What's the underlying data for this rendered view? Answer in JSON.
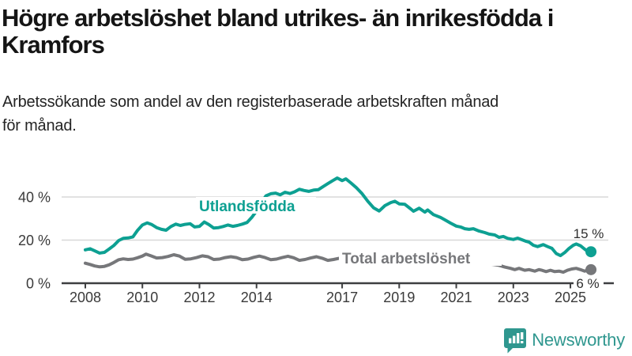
{
  "header": {
    "title_lines": [
      "Högre arbetslöshet bland utrikes- än inrikesfödda i",
      "Kramfors"
    ],
    "subtitle_lines": [
      "Arbetssökande som andel av den registerbaserade arbetskraften månad",
      "för månad."
    ]
  },
  "chart_data": {
    "type": "line",
    "title": "Högre arbetslöshet bland utrikes- än inrikesfödda i Kramfors",
    "subtitle": "Arbetssökande som andel av den registerbaserade arbetskraften månad för månad.",
    "xlabel": "",
    "ylabel": "",
    "legend_position": "inline-labels",
    "grid": true,
    "x_axis": {
      "range": [
        2007.2,
        2026.5
      ],
      "ticks": [
        {
          "value": 2008,
          "label": "2008"
        },
        {
          "value": 2010,
          "label": "2010"
        },
        {
          "value": 2012,
          "label": "2012"
        },
        {
          "value": 2014,
          "label": "2014"
        },
        {
          "value": 2017,
          "label": "2017"
        },
        {
          "value": 2019,
          "label": "2019"
        },
        {
          "value": 2021,
          "label": "2021"
        },
        {
          "value": 2023,
          "label": "2023"
        },
        {
          "value": 2025,
          "label": "2025"
        }
      ]
    },
    "y_axis": {
      "range": [
        0,
        52
      ],
      "unit": "%",
      "ticks": [
        {
          "value": 0,
          "label": "0 %"
        },
        {
          "value": 20,
          "label": "20 %"
        },
        {
          "value": 40,
          "label": "40 %"
        }
      ]
    },
    "series": [
      {
        "name": "Utlandsfödda",
        "color": "#0da092",
        "end_label": "15 %",
        "end_value": 15,
        "points": [
          [
            2008.0,
            15.5
          ],
          [
            2008.17,
            16
          ],
          [
            2008.33,
            15
          ],
          [
            2008.5,
            14
          ],
          [
            2008.67,
            14.3
          ],
          [
            2008.83,
            15.8
          ],
          [
            2009.0,
            17.5
          ],
          [
            2009.17,
            19.8
          ],
          [
            2009.33,
            20.8
          ],
          [
            2009.5,
            21
          ],
          [
            2009.67,
            21.5
          ],
          [
            2009.83,
            24.5
          ],
          [
            2010.0,
            27
          ],
          [
            2010.17,
            28
          ],
          [
            2010.33,
            27.2
          ],
          [
            2010.5,
            25.8
          ],
          [
            2010.67,
            25
          ],
          [
            2010.83,
            24.6
          ],
          [
            2011.0,
            26.3
          ],
          [
            2011.17,
            27.4
          ],
          [
            2011.33,
            26.8
          ],
          [
            2011.5,
            27.3
          ],
          [
            2011.67,
            27.6
          ],
          [
            2011.83,
            26.1
          ],
          [
            2012.0,
            26.4
          ],
          [
            2012.17,
            28.4
          ],
          [
            2012.33,
            27.2
          ],
          [
            2012.5,
            25.6
          ],
          [
            2012.67,
            25.8
          ],
          [
            2012.83,
            26.3
          ],
          [
            2013.0,
            27
          ],
          [
            2013.17,
            26.4
          ],
          [
            2013.33,
            26.8
          ],
          [
            2013.5,
            27.4
          ],
          [
            2013.67,
            28.2
          ],
          [
            2013.83,
            30.5
          ],
          [
            2014.0,
            33.5
          ],
          [
            2014.17,
            37.5
          ],
          [
            2014.33,
            40.5
          ],
          [
            2014.5,
            41.5
          ],
          [
            2014.67,
            41.8
          ],
          [
            2014.83,
            41
          ],
          [
            2015.0,
            42.2
          ],
          [
            2015.17,
            41.6
          ],
          [
            2015.33,
            42.4
          ],
          [
            2015.5,
            43.6
          ],
          [
            2015.67,
            43
          ],
          [
            2015.83,
            42.6
          ],
          [
            2016.0,
            43.2
          ],
          [
            2016.17,
            43.4
          ],
          [
            2016.33,
            44.8
          ],
          [
            2016.5,
            46.2
          ],
          [
            2016.67,
            47.6
          ],
          [
            2016.83,
            48.8
          ],
          [
            2017.0,
            47.6
          ],
          [
            2017.13,
            48.4
          ],
          [
            2017.3,
            46.6
          ],
          [
            2017.5,
            44.3
          ],
          [
            2017.7,
            41.5
          ],
          [
            2017.9,
            38
          ],
          [
            2018.1,
            35
          ],
          [
            2018.3,
            33.5
          ],
          [
            2018.5,
            36
          ],
          [
            2018.7,
            37.4
          ],
          [
            2018.85,
            38
          ],
          [
            2019.0,
            36.8
          ],
          [
            2019.2,
            36.6
          ],
          [
            2019.4,
            34.5
          ],
          [
            2019.5,
            33.4
          ],
          [
            2019.7,
            34.8
          ],
          [
            2019.9,
            33
          ],
          [
            2020.0,
            34
          ],
          [
            2020.2,
            31.8
          ],
          [
            2020.45,
            30.5
          ],
          [
            2020.6,
            29.4
          ],
          [
            2020.8,
            27.9
          ],
          [
            2021.0,
            26.5
          ],
          [
            2021.15,
            26.1
          ],
          [
            2021.3,
            25.3
          ],
          [
            2021.45,
            25
          ],
          [
            2021.6,
            25.3
          ],
          [
            2021.8,
            24.2
          ],
          [
            2022.0,
            23.5
          ],
          [
            2022.15,
            22.8
          ],
          [
            2022.35,
            22.4
          ],
          [
            2022.5,
            21.3
          ],
          [
            2022.65,
            21.7
          ],
          [
            2022.8,
            20.8
          ],
          [
            2023.0,
            20.3
          ],
          [
            2023.15,
            20.9
          ],
          [
            2023.3,
            20.2
          ],
          [
            2023.45,
            19.4
          ],
          [
            2023.55,
            19.1
          ],
          [
            2023.7,
            17.6
          ],
          [
            2023.85,
            17
          ],
          [
            2024.05,
            17.9
          ],
          [
            2024.2,
            17
          ],
          [
            2024.35,
            16.2
          ],
          [
            2024.5,
            13.8
          ],
          [
            2024.65,
            12.8
          ],
          [
            2024.8,
            14.2
          ],
          [
            2024.95,
            16.1
          ],
          [
            2025.1,
            17.6
          ],
          [
            2025.2,
            18.2
          ],
          [
            2025.35,
            17.4
          ],
          [
            2025.5,
            15.8
          ],
          [
            2025.6,
            14.8
          ],
          [
            2025.72,
            14.6
          ]
        ]
      },
      {
        "name": "Total arbetslöshet",
        "color": "#76777a",
        "end_label": "6 %",
        "end_value": 6,
        "points": [
          [
            2008.0,
            9.3
          ],
          [
            2008.17,
            8.7
          ],
          [
            2008.33,
            8
          ],
          [
            2008.5,
            7.6
          ],
          [
            2008.67,
            7.8
          ],
          [
            2008.83,
            8.5
          ],
          [
            2009.0,
            9.6
          ],
          [
            2009.17,
            10.9
          ],
          [
            2009.33,
            11.3
          ],
          [
            2009.5,
            11
          ],
          [
            2009.67,
            11.2
          ],
          [
            2009.83,
            11.8
          ],
          [
            2010.0,
            12.6
          ],
          [
            2010.13,
            13.5
          ],
          [
            2010.3,
            12.7
          ],
          [
            2010.5,
            11.7
          ],
          [
            2010.7,
            11.9
          ],
          [
            2010.9,
            12.4
          ],
          [
            2011.1,
            13.2
          ],
          [
            2011.3,
            12.6
          ],
          [
            2011.5,
            11.1
          ],
          [
            2011.7,
            11.3
          ],
          [
            2011.9,
            11.9
          ],
          [
            2012.1,
            12.7
          ],
          [
            2012.3,
            12.3
          ],
          [
            2012.5,
            11
          ],
          [
            2012.7,
            11.2
          ],
          [
            2012.9,
            11.9
          ],
          [
            2013.1,
            12.3
          ],
          [
            2013.3,
            11.9
          ],
          [
            2013.5,
            10.9
          ],
          [
            2013.7,
            11.2
          ],
          [
            2013.9,
            12
          ],
          [
            2014.1,
            12.6
          ],
          [
            2014.3,
            11.9
          ],
          [
            2014.5,
            10.9
          ],
          [
            2014.7,
            11.2
          ],
          [
            2014.9,
            11.9
          ],
          [
            2015.1,
            12.5
          ],
          [
            2015.3,
            11.8
          ],
          [
            2015.5,
            10.6
          ],
          [
            2015.7,
            11
          ],
          [
            2015.9,
            11.7
          ],
          [
            2016.1,
            12.3
          ],
          [
            2016.3,
            11.6
          ],
          [
            2016.5,
            10.6
          ],
          [
            2016.7,
            11
          ],
          [
            2016.9,
            11.6
          ],
          [
            2017.1,
            11.7
          ],
          [
            2017.3,
            11
          ],
          [
            2017.5,
            10.3
          ],
          [
            2017.7,
            10.6
          ],
          [
            2017.9,
            11.1
          ],
          [
            2018.1,
            11.5
          ],
          [
            2018.3,
            10.8
          ],
          [
            2018.5,
            10.1
          ],
          [
            2018.7,
            10.4
          ],
          [
            2018.9,
            11
          ],
          [
            2019.1,
            11.3
          ],
          [
            2019.3,
            10.7
          ],
          [
            2019.5,
            9.9
          ],
          [
            2019.7,
            10.2
          ],
          [
            2019.9,
            10.8
          ],
          [
            2020.1,
            11.3
          ],
          [
            2020.3,
            11.6
          ],
          [
            2020.5,
            11.2
          ],
          [
            2020.7,
            10.9
          ],
          [
            2020.9,
            11.1
          ],
          [
            2021.1,
            11.2
          ],
          [
            2021.3,
            10.6
          ],
          [
            2021.5,
            9.9
          ],
          [
            2021.7,
            9.5
          ],
          [
            2021.9,
            9.3
          ],
          [
            2022.1,
            9
          ],
          [
            2022.3,
            8.7
          ],
          [
            2022.5,
            8.3
          ],
          [
            2022.7,
            7.5
          ],
          [
            2022.9,
            6.9
          ],
          [
            2023.05,
            6.3
          ],
          [
            2023.2,
            6.9
          ],
          [
            2023.4,
            6
          ],
          [
            2023.55,
            6.3
          ],
          [
            2023.75,
            5.6
          ],
          [
            2023.9,
            6.3
          ],
          [
            2024.0,
            6
          ],
          [
            2024.15,
            5.4
          ],
          [
            2024.3,
            6
          ],
          [
            2024.45,
            5.4
          ],
          [
            2024.6,
            5.6
          ],
          [
            2024.75,
            5.1
          ],
          [
            2024.9,
            6
          ],
          [
            2025.05,
            6.6
          ],
          [
            2025.2,
            6.9
          ],
          [
            2025.35,
            6.3
          ],
          [
            2025.5,
            5.6
          ],
          [
            2025.6,
            6
          ],
          [
            2025.72,
            6.3
          ]
        ]
      }
    ]
  },
  "branding": {
    "logo_text": "Newsworthy",
    "logo_color": "#2f978f",
    "logo_icon": "bar-chart-speech-bubble-icon"
  }
}
